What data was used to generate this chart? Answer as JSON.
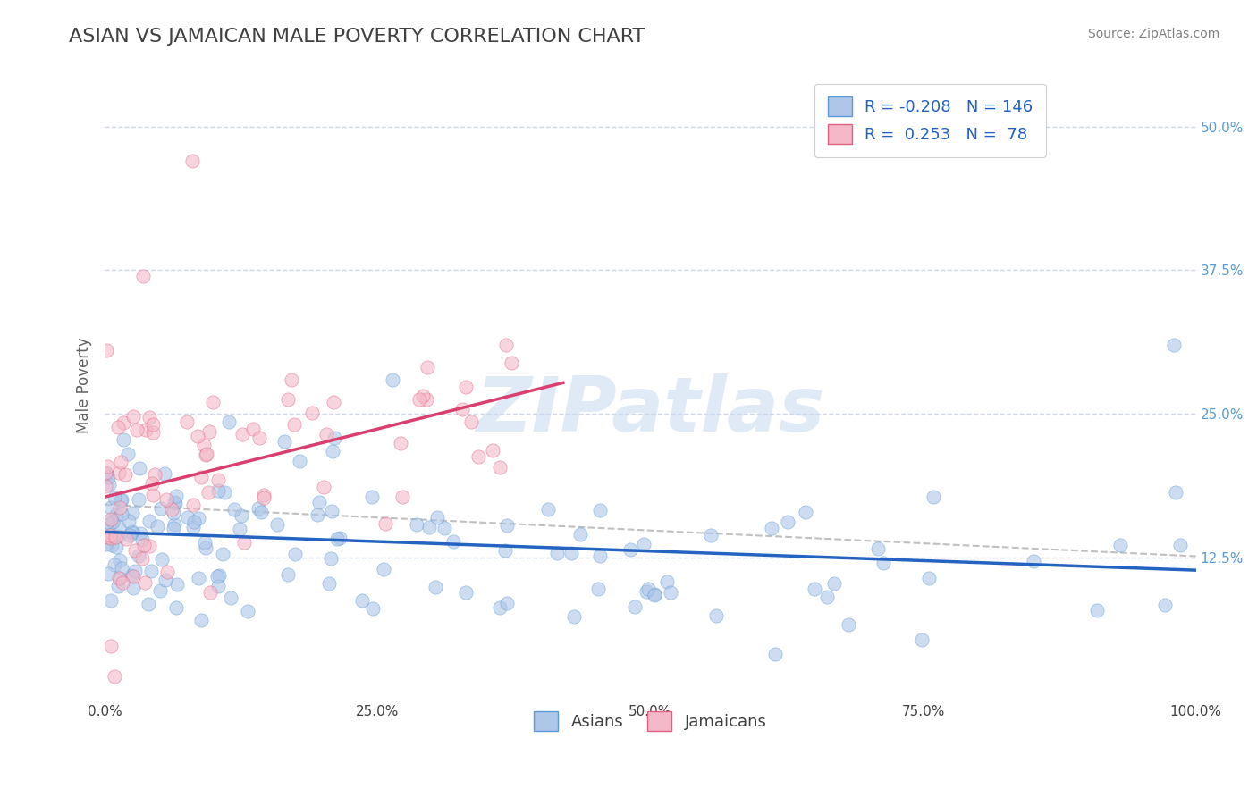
{
  "title": "ASIAN VS JAMAICAN MALE POVERTY CORRELATION CHART",
  "source_text": "Source: ZipAtlas.com",
  "ylabel": "Male Poverty",
  "xlim": [
    0,
    1
  ],
  "ylim": [
    0,
    0.55
  ],
  "xtick_positions": [
    0.0,
    0.25,
    0.5,
    0.75,
    1.0
  ],
  "xtick_labels": [
    "0.0%",
    "25.0%",
    "50.0%",
    "75.0%",
    "100.0%"
  ],
  "ytick_positions": [
    0.125,
    0.25,
    0.375,
    0.5
  ],
  "ytick_labels": [
    "12.5%",
    "25.0%",
    "37.5%",
    "50.0%"
  ],
  "asian_color": "#aec6e8",
  "asian_edge_color": "#5b9bd5",
  "jamaican_color": "#f4b8c8",
  "jamaican_edge_color": "#e06080",
  "trend_blue_color": "#2563c0",
  "trend_pink_color": "#d94070",
  "trend_dashed_color": "#c0c0c0",
  "R_asian": -0.208,
  "N_asian": 146,
  "R_jamaican": 0.253,
  "N_jamaican": 78,
  "watermark": "ZIPatlas",
  "watermark_color": "#c8d8f0",
  "background_color": "#ffffff",
  "grid_color": "#d0d8e8",
  "title_color": "#404040",
  "title_fontsize": 16,
  "source_fontsize": 10,
  "axis_label_fontsize": 12,
  "tick_fontsize": 11,
  "legend_fontsize": 13,
  "dot_size": 120,
  "dot_alpha": 0.6,
  "dot_linewidth": 0.5
}
